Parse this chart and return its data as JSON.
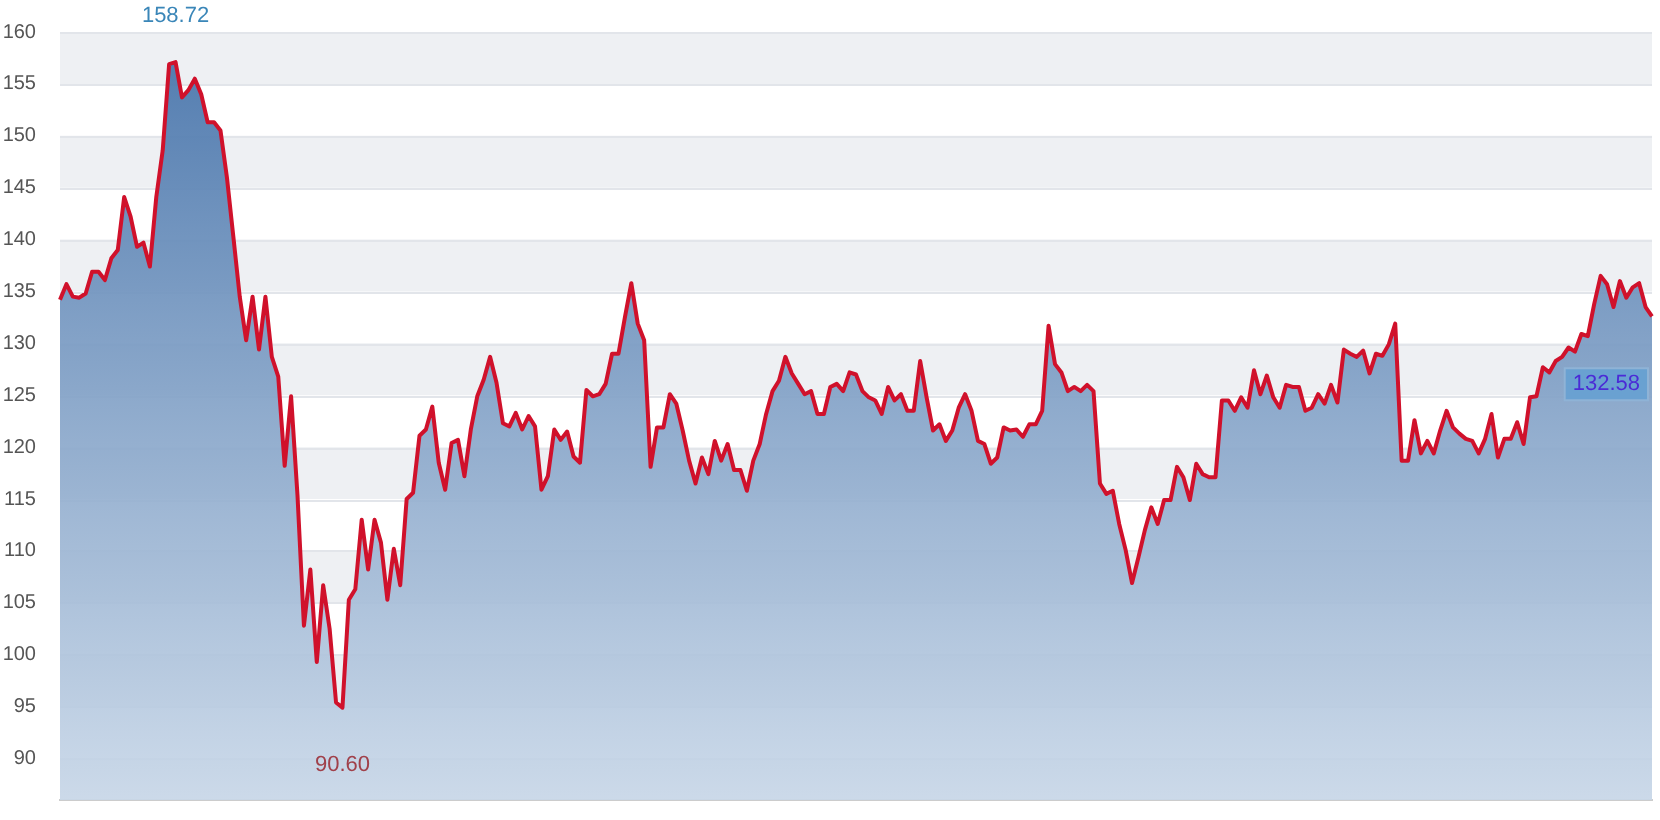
{
  "chart_data": {
    "type": "area",
    "categories": [
      null,
      null,
      null,
      null,
      null,
      null,
      null,
      null,
      null,
      null,
      null,
      null,
      null,
      null,
      null,
      null,
      null,
      null,
      null,
      null,
      null,
      null,
      null,
      null,
      null,
      null,
      null,
      null,
      null,
      null,
      null,
      null,
      null,
      null,
      null,
      null,
      null,
      null,
      null,
      null,
      null,
      null,
      null,
      null,
      null,
      null,
      null,
      null,
      null,
      null,
      null,
      null,
      null,
      null,
      null,
      null,
      null,
      null,
      null,
      null,
      null,
      null,
      null,
      null,
      null,
      null,
      null,
      null,
      null,
      null,
      null,
      null,
      null,
      null,
      null,
      null,
      null,
      null,
      null,
      null,
      null,
      null,
      null,
      null,
      null,
      null,
      null,
      null,
      null,
      null,
      null,
      null,
      null,
      null,
      null,
      null,
      null,
      null,
      null,
      null,
      null,
      null,
      null,
      null,
      null,
      null,
      null,
      null,
      null,
      null,
      null,
      null,
      null,
      null,
      null,
      null,
      null,
      null,
      null,
      null,
      null,
      null,
      null,
      null,
      null,
      null,
      null,
      null,
      null,
      null,
      null,
      null,
      null,
      null,
      null,
      null,
      null,
      null,
      null,
      null,
      null,
      null,
      null,
      null,
      null,
      null,
      null,
      null,
      null,
      null,
      null,
      null,
      null,
      null,
      null,
      null,
      null,
      null,
      null,
      null,
      null,
      null,
      null,
      null,
      null,
      null,
      null,
      null,
      null,
      null,
      null,
      null,
      null,
      null,
      null,
      null,
      null,
      null,
      null,
      null,
      null,
      null,
      null,
      null,
      null,
      null,
      null,
      null,
      null,
      null,
      null,
      null,
      null,
      null,
      null,
      null,
      null,
      null,
      null,
      null,
      null,
      null,
      null,
      null,
      null,
      null,
      null,
      null,
      null,
      null,
      null,
      null,
      null,
      null,
      null,
      null,
      null,
      null,
      null,
      null,
      null,
      null,
      null,
      null,
      null,
      null,
      null,
      null,
      null,
      null,
      null,
      null,
      null,
      null,
      null,
      null,
      null,
      null,
      null,
      null,
      null,
      null,
      null,
      null,
      null,
      null,
      null,
      null,
      null
    ],
    "series": [
      {
        "color": "#d0112b",
        "values": [
          134.2,
          135.7,
          134.5,
          134.4,
          134.8,
          136.9,
          136.9,
          136.1,
          138.2,
          139.0,
          144.1,
          142.2,
          139.3,
          139.7,
          137.4,
          144.1,
          148.6,
          156.9,
          157.1,
          153.7,
          154.4,
          155.5,
          154.0,
          151.3,
          151.3,
          150.5,
          146.0,
          140.3,
          134.5,
          130.3,
          134.5,
          129.4,
          134.5,
          128.7,
          126.8,
          118.2,
          124.9,
          115.3,
          102.8,
          108.2,
          99.3,
          106.7,
          102.5,
          95.4,
          94.9,
          105.3,
          106.3,
          113.0,
          108.2,
          113.0,
          110.8,
          105.3,
          110.2,
          106.7,
          115.0,
          115.6,
          121.1,
          121.7,
          123.9,
          118.5,
          115.9,
          120.4,
          120.7,
          117.2,
          121.7,
          124.9,
          126.5,
          128.7,
          126.2,
          122.3,
          122.0,
          123.3,
          121.7,
          123.0,
          122.0,
          115.9,
          117.2,
          121.7,
          120.7,
          121.5,
          119.1,
          118.5,
          125.5,
          124.9,
          125.1,
          126.1,
          129.0,
          129.0,
          132.5,
          135.8,
          131.9,
          130.3,
          118.1,
          121.9,
          121.9,
          125.1,
          124.2,
          121.6,
          118.7,
          116.5,
          119.0,
          117.4,
          120.6,
          118.7,
          120.3,
          117.8,
          117.8,
          115.8,
          118.7,
          120.3,
          123.2,
          125.4,
          126.4,
          128.7,
          127.1,
          126.1,
          125.1,
          125.4,
          123.2,
          123.2,
          125.8,
          126.1,
          125.4,
          127.2,
          127.0,
          125.4,
          124.8,
          124.5,
          123.2,
          125.8,
          124.5,
          125.1,
          123.5,
          123.5,
          128.3,
          124.8,
          121.6,
          122.2,
          120.6,
          121.6,
          123.8,
          125.1,
          123.5,
          120.6,
          120.3,
          118.4,
          119.0,
          121.9,
          121.6,
          121.7,
          121.0,
          122.2,
          122.2,
          123.5,
          131.7,
          128.0,
          127.2,
          125.4,
          125.8,
          125.4,
          126.0,
          125.4,
          116.5,
          115.5,
          115.8,
          112.6,
          110.1,
          106.9,
          109.4,
          112.0,
          114.2,
          112.6,
          114.9,
          114.9,
          118.1,
          117.1,
          114.9,
          118.4,
          117.4,
          117.1,
          117.1,
          124.5,
          124.5,
          123.5,
          124.8,
          123.8,
          127.4,
          125.1,
          126.9,
          124.8,
          123.8,
          126.0,
          125.8,
          125.8,
          123.5,
          123.8,
          125.1,
          124.2,
          126.0,
          124.3,
          129.4,
          129.0,
          128.7,
          129.3,
          127.1,
          129.0,
          128.8,
          129.9,
          131.9,
          118.7,
          118.7,
          122.6,
          119.4,
          120.6,
          119.4,
          121.6,
          123.5,
          121.9,
          121.3,
          120.8,
          120.6,
          119.4,
          120.8,
          123.2,
          119.0,
          120.8,
          120.8,
          122.4,
          120.3,
          124.8,
          124.9,
          127.7,
          127.2,
          128.3,
          128.7,
          129.6,
          129.2,
          130.9,
          130.7,
          133.8,
          136.5,
          135.7,
          133.5,
          136.0,
          134.4,
          135.4,
          135.8,
          133.5,
          132.6
        ]
      }
    ],
    "ylim": [
      86,
      160
    ],
    "yticks": [
      90,
      95,
      100,
      105,
      110,
      115,
      120,
      125,
      130,
      135,
      140,
      145,
      150,
      155,
      160
    ],
    "grid": "y",
    "legend": false,
    "marker": "none",
    "line_style": "solid",
    "tick_labels": "y",
    "annotations": [
      "158.72",
      "90.60",
      "132.58"
    ]
  }
}
